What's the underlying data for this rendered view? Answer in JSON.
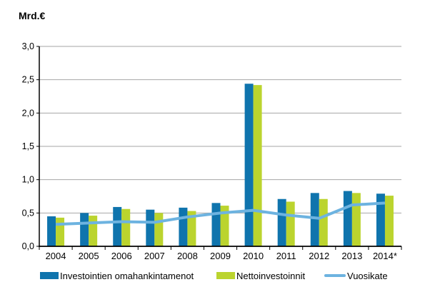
{
  "title": "Mrd.€",
  "chart_data": {
    "type": "bar",
    "title": "",
    "ylabel": "Mrd.€",
    "xlabel": "",
    "ylim": [
      0,
      3.0
    ],
    "ytick_step": 0.5,
    "grid": true,
    "decimal_separator": ",",
    "legend_position": "bottom",
    "categories": [
      "2004",
      "2005",
      "2006",
      "2007",
      "2008",
      "2009",
      "2010",
      "2011",
      "2012",
      "2013",
      "2014*"
    ],
    "series": [
      {
        "name": "Investointien omahankintamenot",
        "type": "bar",
        "color": "#0f74ad",
        "values": [
          0.45,
          0.5,
          0.59,
          0.55,
          0.58,
          0.65,
          2.44,
          0.71,
          0.8,
          0.83,
          0.79
        ]
      },
      {
        "name": "Nettoinvestoinnit",
        "type": "bar",
        "color": "#bbd42e",
        "values": [
          0.43,
          0.46,
          0.56,
          0.5,
          0.53,
          0.61,
          2.42,
          0.67,
          0.71,
          0.8,
          0.76
        ]
      },
      {
        "name": "Vuosikate",
        "type": "line",
        "color": "#6db3e0",
        "values": [
          0.33,
          0.35,
          0.37,
          0.36,
          0.44,
          0.5,
          0.54,
          0.47,
          0.42,
          0.62,
          0.65
        ]
      }
    ],
    "axis_color": "#000000",
    "gridline_color": "#a6a6a6"
  }
}
